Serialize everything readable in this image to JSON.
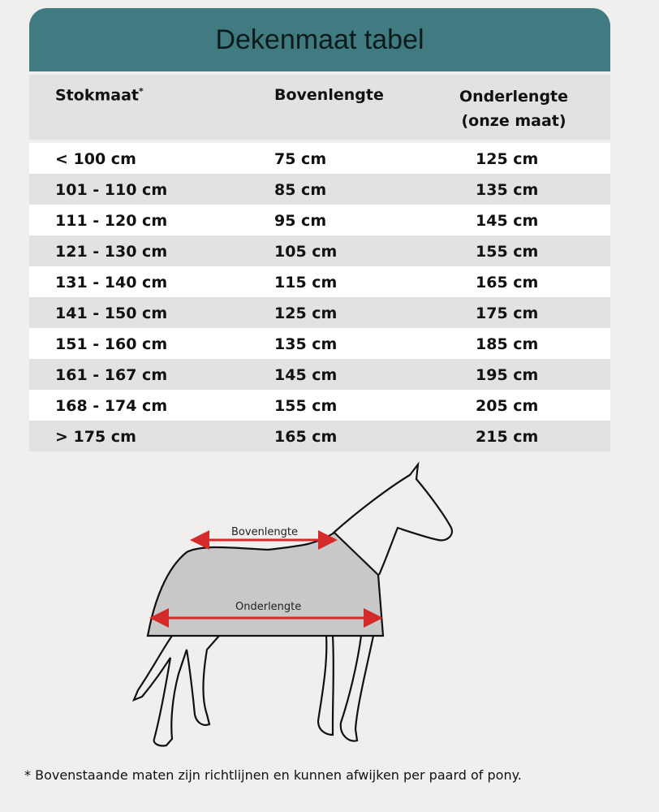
{
  "title": "Dekenmaat tabel",
  "headers": {
    "stokmaat": "Stokmaat",
    "asterisk": "*",
    "bovenlengte": "Bovenlengte",
    "onderlengte": "Onderlengte",
    "onderlengte_sub": "(onze maat)"
  },
  "rows": [
    {
      "stokmaat": "< 100 cm",
      "boven": "75 cm",
      "onder": "125 cm"
    },
    {
      "stokmaat": "101 - 110 cm",
      "boven": "85 cm",
      "onder": "135 cm"
    },
    {
      "stokmaat": "111 - 120 cm",
      "boven": "95 cm",
      "onder": "145 cm"
    },
    {
      "stokmaat": "121 - 130 cm",
      "boven": "105 cm",
      "onder": "155 cm"
    },
    {
      "stokmaat": "131 - 140 cm",
      "boven": "115 cm",
      "onder": "165 cm"
    },
    {
      "stokmaat": "141 - 150 cm",
      "boven": "125 cm",
      "onder": "175 cm"
    },
    {
      "stokmaat": "151 - 160 cm",
      "boven": "135 cm",
      "onder": "185 cm"
    },
    {
      "stokmaat": "161 - 167 cm",
      "boven": "145 cm",
      "onder": "195 cm"
    },
    {
      "stokmaat": "168 - 174 cm",
      "boven": "155 cm",
      "onder": "205 cm"
    },
    {
      "stokmaat": "> 175 cm",
      "boven": "165 cm",
      "onder": "215 cm"
    }
  ],
  "diagram": {
    "boven_label": "Bovenlengte",
    "onder_label": "Onderlengte",
    "arrow_color": "#d42a2a",
    "blanket_color": "#c8c8c8"
  },
  "colors": {
    "header": "#3f7b80"
  },
  "footnote": "* Bovenstaande maten zijn richtlijnen en kunnen afwijken per paard of pony."
}
